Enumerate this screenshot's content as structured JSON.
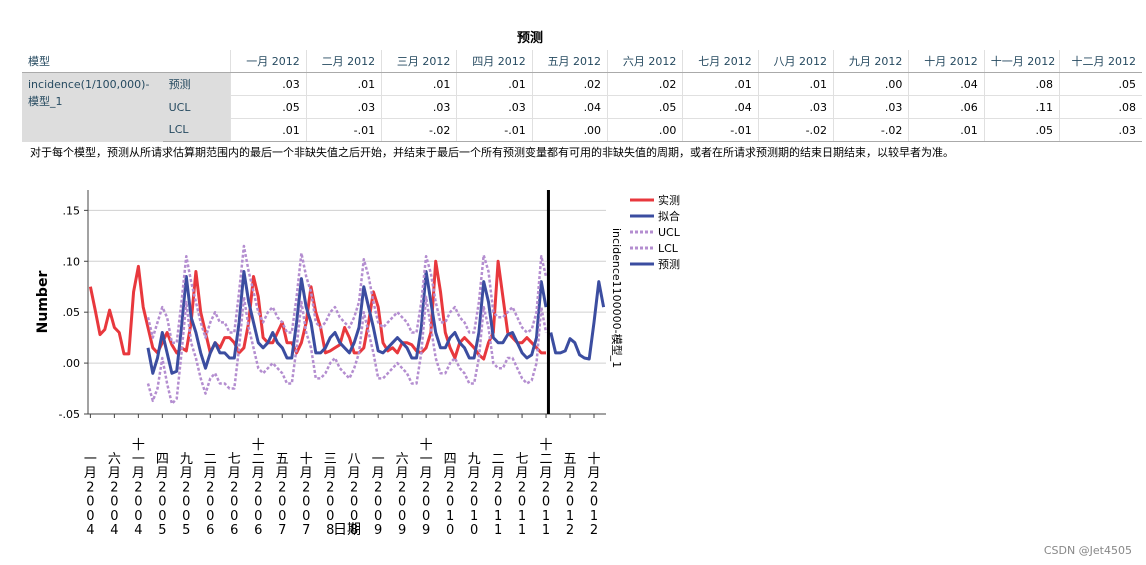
{
  "table": {
    "title": "预测",
    "model_header": "模型",
    "columns": [
      "一月 2012",
      "二月 2012",
      "三月 2012",
      "四月 2012",
      "五月 2012",
      "六月 2012",
      "七月 2012",
      "八月 2012",
      "九月 2012",
      "十月 2012",
      "十一月 2012",
      "十二月 2012"
    ],
    "model_name": "incidence(1/100,000)-模型_1",
    "rows": [
      {
        "label": "预测",
        "values": [
          ".03",
          ".01",
          ".01",
          ".01",
          ".02",
          ".02",
          ".01",
          ".01",
          ".00",
          ".04",
          ".08",
          ".05"
        ]
      },
      {
        "label": "UCL",
        "values": [
          ".05",
          ".03",
          ".03",
          ".03",
          ".04",
          ".05",
          ".04",
          ".03",
          ".03",
          ".06",
          ".11",
          ".08"
        ]
      },
      {
        "label": "LCL",
        "values": [
          ".01",
          "-.01",
          "-.02",
          "-.01",
          ".00",
          ".00",
          "-.01",
          "-.02",
          "-.02",
          ".01",
          ".05",
          ".03"
        ]
      }
    ],
    "footnote": "对于每个模型，预测从所请求估算期范围内的最后一个非缺失值之后开始，并结束于最后一个所有预测变量都有可用的非缺失值的周期，或者在所请求预测期的结束日期结束，以较早者为准。"
  },
  "chart_data": {
    "type": "line",
    "title": "",
    "xlabel": "日期",
    "ylabel": "Number",
    "right_label": "incidence1100000-模型_1",
    "ylim": [
      -0.05,
      0.17
    ],
    "yticks": [
      -0.05,
      0.0,
      0.05,
      0.1,
      0.15
    ],
    "ytick_labels": [
      "-.05",
      ".00",
      ".05",
      ".10",
      ".15"
    ],
    "grid": true,
    "legend_position": "right",
    "n_periods": 108,
    "start": "一月 2004",
    "forecast_start_index": 96,
    "xtick_indices": [
      0,
      5,
      10,
      15,
      20,
      25,
      30,
      35,
      40,
      45,
      50,
      55,
      60,
      65,
      70,
      75,
      80,
      85,
      90,
      95,
      100,
      105
    ],
    "xtick_labels": [
      "一月 2004",
      "六月 2004",
      "十一月 2004",
      "四月 2005",
      "九月 2005",
      "二月 2006",
      "七月 2006",
      "十二月 2006",
      "五月 2007",
      "十月 2007",
      "三月 2008",
      "八月 2008",
      "一月 2009",
      "六月 2009",
      "十一月 2009",
      "四月 2010",
      "九月 2010",
      "二月 2011",
      "七月 2011",
      "十二月 2011",
      "五月 2012",
      "十月 2012"
    ],
    "series": [
      {
        "name": "实测",
        "color": "#e8383d",
        "style": "solid",
        "start": 0,
        "values": [
          0.075,
          0.052,
          0.028,
          0.033,
          0.052,
          0.035,
          0.03,
          0.009,
          0.009,
          0.07,
          0.095,
          0.055,
          0.035,
          0.015,
          0.01,
          0.02,
          0.03,
          0.018,
          0.01,
          0.015,
          0.012,
          0.04,
          0.09,
          0.05,
          0.03,
          0.01,
          0.02,
          0.015,
          0.025,
          0.025,
          0.02,
          0.01,
          0.015,
          0.04,
          0.085,
          0.065,
          0.025,
          0.02,
          0.02,
          0.03,
          0.04,
          0.02,
          0.02,
          0.01,
          0.02,
          0.04,
          0.075,
          0.05,
          0.035,
          0.01,
          0.012,
          0.015,
          0.018,
          0.035,
          0.025,
          0.01,
          0.01,
          0.015,
          0.04,
          0.07,
          0.055,
          0.02,
          0.012,
          0.015,
          0.01,
          0.02,
          0.02,
          0.018,
          0.012,
          0.01,
          0.015,
          0.03,
          0.1,
          0.07,
          0.03,
          0.015,
          0.005,
          0.02,
          0.025,
          0.02,
          0.015,
          0.008,
          0.004,
          0.02,
          0.03,
          0.1,
          0.065,
          0.03,
          0.025,
          0.02,
          0.02,
          0.025,
          0.02,
          0.015,
          0.01,
          0.01
        ]
      },
      {
        "name": "拟合",
        "color": "#3b4da0",
        "style": "solid",
        "start": 12,
        "values": [
          0.015,
          -0.01,
          0.005,
          0.03,
          0.01,
          -0.01,
          -0.008,
          0.035,
          0.085,
          0.045,
          0.03,
          0.01,
          -0.005,
          0.01,
          0.02,
          0.01,
          0.01,
          0.005,
          0.005,
          0.04,
          0.09,
          0.06,
          0.04,
          0.02,
          0.015,
          0.02,
          0.03,
          0.02,
          0.015,
          0.005,
          0.005,
          0.04,
          0.083,
          0.055,
          0.04,
          0.01,
          0.01,
          0.015,
          0.025,
          0.03,
          0.02,
          0.015,
          0.01,
          0.02,
          0.035,
          0.075,
          0.055,
          0.035,
          0.012,
          0.01,
          0.015,
          0.02,
          0.025,
          0.02,
          0.015,
          0.005,
          0.005,
          0.035,
          0.09,
          0.06,
          0.03,
          0.015,
          0.015,
          0.025,
          0.03,
          0.02,
          0.015,
          0.005,
          0.005,
          0.03,
          0.08,
          0.06,
          0.025,
          0.02,
          0.02,
          0.028,
          0.03,
          0.02,
          0.01,
          0.005,
          0.008,
          0.025,
          0.08,
          0.055
        ]
      },
      {
        "name": "UCL",
        "color": "#b48ed0",
        "style": "dotted",
        "start": 12,
        "values": [
          0.045,
          0.025,
          0.04,
          0.055,
          0.045,
          0.02,
          0.02,
          0.06,
          0.105,
          0.08,
          0.06,
          0.04,
          0.025,
          0.04,
          0.05,
          0.04,
          0.04,
          0.03,
          0.03,
          0.07,
          0.115,
          0.09,
          0.07,
          0.05,
          0.04,
          0.05,
          0.055,
          0.045,
          0.04,
          0.03,
          0.03,
          0.065,
          0.108,
          0.085,
          0.07,
          0.04,
          0.035,
          0.04,
          0.05,
          0.055,
          0.045,
          0.04,
          0.035,
          0.045,
          0.06,
          0.102,
          0.085,
          0.06,
          0.04,
          0.035,
          0.04,
          0.045,
          0.05,
          0.045,
          0.04,
          0.03,
          0.03,
          0.06,
          0.105,
          0.088,
          0.06,
          0.04,
          0.04,
          0.05,
          0.055,
          0.045,
          0.04,
          0.03,
          0.03,
          0.06,
          0.106,
          0.09,
          0.05,
          0.045,
          0.045,
          0.05,
          0.055,
          0.045,
          0.035,
          0.03,
          0.033,
          0.05,
          0.105,
          0.085
        ]
      },
      {
        "name": "LCL",
        "color": "#b48ed0",
        "style": "dotted",
        "start": 12,
        "values": [
          -0.02,
          -0.037,
          -0.025,
          0.005,
          -0.02,
          -0.04,
          -0.035,
          0.01,
          0.06,
          0.02,
          0.005,
          -0.015,
          -0.03,
          -0.015,
          -0.01,
          -0.02,
          -0.02,
          -0.025,
          -0.025,
          0.015,
          0.065,
          0.035,
          0.015,
          -0.005,
          -0.01,
          -0.005,
          0.0,
          -0.005,
          -0.01,
          -0.02,
          -0.02,
          0.015,
          0.06,
          0.03,
          0.015,
          -0.015,
          -0.015,
          -0.01,
          0.0,
          0.005,
          -0.005,
          -0.01,
          -0.015,
          -0.005,
          0.01,
          0.05,
          0.03,
          0.01,
          -0.015,
          -0.015,
          -0.01,
          -0.005,
          0.0,
          -0.005,
          -0.01,
          -0.02,
          -0.02,
          0.01,
          0.065,
          0.035,
          0.005,
          -0.01,
          -0.01,
          0.0,
          0.005,
          -0.005,
          -0.01,
          -0.02,
          -0.02,
          0.005,
          0.055,
          0.035,
          0.0,
          -0.005,
          -0.005,
          0.005,
          0.005,
          -0.005,
          -0.015,
          -0.02,
          -0.017,
          0.0,
          0.055,
          0.03
        ]
      },
      {
        "name": "预测",
        "color": "#3b4da0",
        "style": "solid",
        "start": 96,
        "values": [
          0.03,
          0.01,
          0.01,
          0.012,
          0.024,
          0.02,
          0.008,
          0.005,
          0.004,
          0.04,
          0.08,
          0.055
        ]
      }
    ]
  },
  "watermark": "CSDN @Jet4505"
}
